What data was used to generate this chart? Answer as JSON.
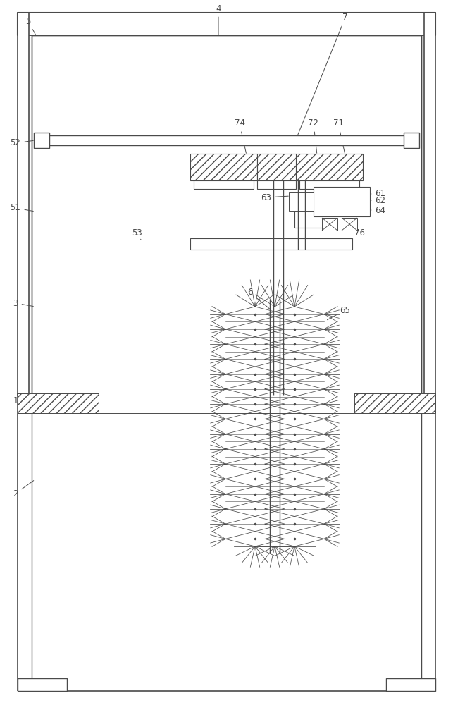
{
  "bg_color": "#ffffff",
  "line_color": "#4a4a4a",
  "fig_width": 6.43,
  "fig_height": 10.0,
  "dpi": 100
}
